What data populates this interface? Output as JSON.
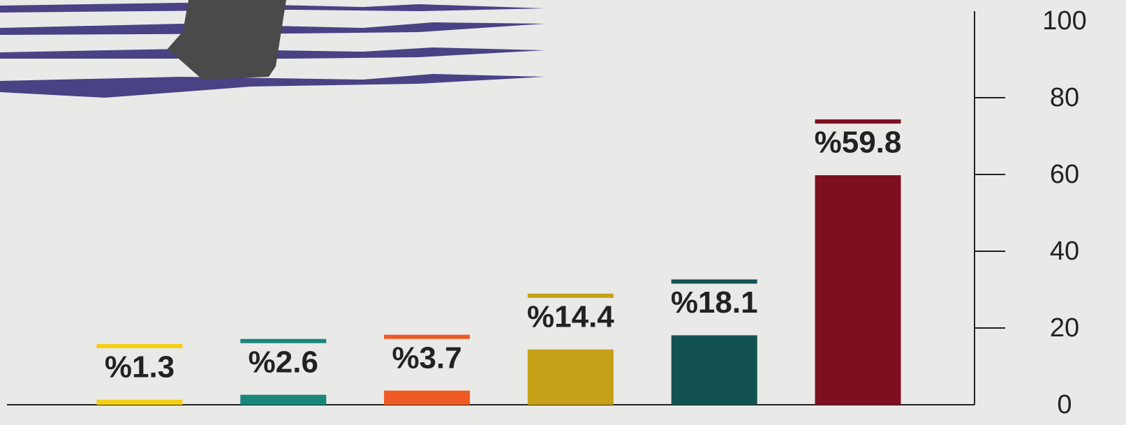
{
  "chart_data": {
    "type": "bar",
    "categories": [
      null,
      null,
      null,
      null,
      null,
      null
    ],
    "values": [
      1.3,
      2.6,
      3.7,
      14.4,
      18.1,
      59.8
    ],
    "value_labels": [
      "%1.3",
      "%2.6",
      "%3.7",
      "%14.4",
      "%18.1",
      "%59.8"
    ],
    "colors": [
      "#f5cf14",
      "#17877a",
      "#ef5a24",
      "#c6a118",
      "#135252",
      "#7d0f1e"
    ],
    "ylim": [
      0,
      100
    ],
    "yticks": [
      0,
      20,
      40,
      60,
      80,
      100
    ],
    "y_axis_side": "right",
    "grid": false
  }
}
